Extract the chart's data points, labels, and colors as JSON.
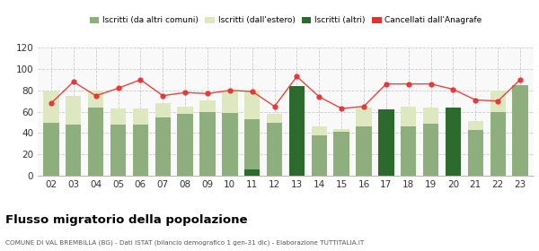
{
  "years": [
    "02",
    "03",
    "04",
    "05",
    "06",
    "07",
    "08",
    "09",
    "10",
    "11",
    "12",
    "13",
    "14",
    "15",
    "16",
    "17",
    "18",
    "19",
    "20",
    "21",
    "22",
    "23"
  ],
  "iscritti_comuni": [
    50,
    48,
    64,
    48,
    48,
    55,
    58,
    60,
    59,
    53,
    50,
    55,
    38,
    41,
    46,
    46,
    46,
    49,
    36,
    43,
    60,
    85
  ],
  "iscritti_estero": [
    79,
    75,
    80,
    63,
    63,
    68,
    65,
    71,
    80,
    80,
    58,
    65,
    46,
    44,
    64,
    62,
    65,
    64,
    47,
    51,
    80,
    85
  ],
  "iscritti_altri": [
    0,
    0,
    0,
    0,
    0,
    0,
    0,
    0,
    0,
    6,
    0,
    84,
    0,
    0,
    0,
    62,
    0,
    0,
    64,
    0,
    0,
    0
  ],
  "cancellati": [
    68,
    88,
    75,
    82,
    90,
    75,
    78,
    77,
    80,
    79,
    65,
    93,
    74,
    63,
    65,
    86,
    86,
    86,
    81,
    71,
    70,
    90
  ],
  "color_comuni": "#8fae7d",
  "color_estero": "#dde8c0",
  "color_altri": "#2d6a2d",
  "color_cancellati": "#e83030",
  "bg_color": "#f9f9f9",
  "grid_color": "#cccccc",
  "ylim": [
    0,
    120
  ],
  "yticks": [
    0,
    20,
    40,
    60,
    80,
    100,
    120
  ],
  "title": "Flusso migratorio della popolazione",
  "subtitle": "COMUNE DI VAL BREMBILLA (BG) - Dati ISTAT (bilancio demografico 1 gen-31 dic) - Elaborazione TUTTITALIA.IT",
  "legend_labels": [
    "Iscritti (da altri comuni)",
    "Iscritti (dall'estero)",
    "Iscritti (altri)",
    "Cancellati dall'Anagrafe"
  ]
}
